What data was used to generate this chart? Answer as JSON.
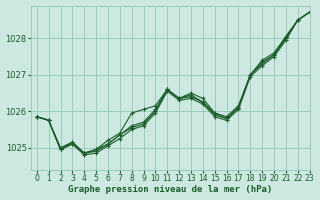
{
  "title": "Graphe pression niveau de la mer (hPa)",
  "background_color": "#cce8e0",
  "grid_color": "#99ccbb",
  "line_color": "#1a5c2a",
  "xlim": [
    -0.5,
    23
  ],
  "ylim": [
    1024.4,
    1028.9
  ],
  "yticks": [
    1025,
    1026,
    1027,
    1028
  ],
  "xticks": [
    0,
    1,
    2,
    3,
    4,
    5,
    6,
    7,
    8,
    9,
    10,
    11,
    12,
    13,
    14,
    15,
    16,
    17,
    18,
    19,
    20,
    21,
    22,
    23
  ],
  "series": [
    [
      1025.85,
      1025.75,
      1024.95,
      1025.1,
      1024.8,
      1024.85,
      1025.05,
      1025.25,
      1025.5,
      1025.6,
      1025.95,
      1026.55,
      1026.3,
      1026.35,
      1026.2,
      1025.85,
      1025.75,
      1026.05,
      1026.95,
      1027.25,
      1027.5,
      1027.95,
      1028.5,
      1028.72
    ],
    [
      1025.85,
      1025.75,
      1024.95,
      1025.1,
      1024.85,
      1024.9,
      1025.1,
      1025.35,
      1025.55,
      1025.65,
      1026.0,
      1026.6,
      1026.35,
      1026.4,
      1026.25,
      1025.95,
      1025.8,
      1026.1,
      1027.0,
      1027.3,
      1027.55,
      1028.05,
      1028.5,
      1028.72
    ],
    [
      1025.85,
      1025.75,
      1025.0,
      1025.15,
      1024.85,
      1024.95,
      1025.2,
      1025.4,
      1025.95,
      1026.05,
      1026.15,
      1026.6,
      1026.35,
      1026.5,
      1026.35,
      1025.95,
      1025.85,
      1026.15,
      1027.0,
      1027.4,
      1027.6,
      1028.05,
      1028.5,
      1028.72
    ],
    [
      1025.85,
      1025.75,
      1024.95,
      1025.15,
      1024.85,
      1024.95,
      1025.1,
      1025.35,
      1025.6,
      1025.7,
      1026.05,
      1026.6,
      1026.35,
      1026.45,
      1026.25,
      1025.9,
      1025.8,
      1026.1,
      1027.0,
      1027.35,
      1027.55,
      1028.0,
      1028.5,
      1028.72
    ]
  ]
}
